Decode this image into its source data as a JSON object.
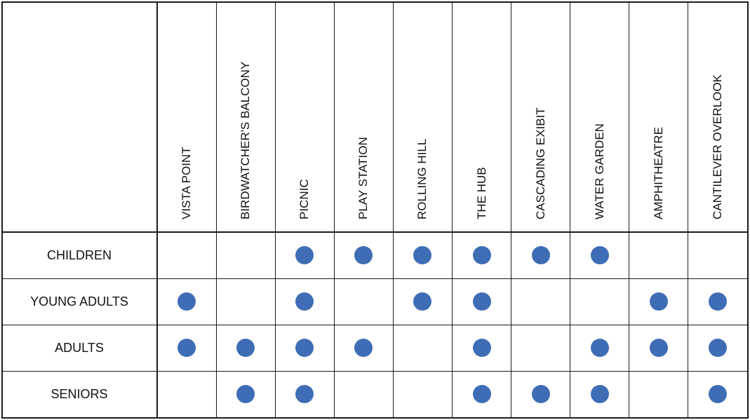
{
  "chart_data": {
    "type": "table",
    "columns": [
      "VISTA POINT",
      "BIRDWATCHER'S BALCONY",
      "PICNIC",
      "PLAY STATION",
      "ROLLING HILL",
      "THE HUB",
      "CASCADING EXIBIT",
      "WATER GARDEN",
      "AMPHITHEATRE",
      "CANTILEVER OVERLOOK"
    ],
    "rows": [
      {
        "label": "CHILDREN",
        "values": [
          0,
          0,
          1,
          1,
          1,
          1,
          1,
          1,
          0,
          0
        ]
      },
      {
        "label": "YOUNG ADULTS",
        "values": [
          1,
          0,
          1,
          0,
          1,
          1,
          0,
          0,
          1,
          1
        ]
      },
      {
        "label": "ADULTS",
        "values": [
          1,
          1,
          1,
          1,
          0,
          1,
          0,
          1,
          1,
          1
        ]
      },
      {
        "label": "SENIORS",
        "values": [
          0,
          1,
          1,
          0,
          0,
          1,
          1,
          1,
          0,
          1
        ]
      }
    ],
    "dot_color": "#3e6db5",
    "line_color": "#1a1a1a"
  }
}
